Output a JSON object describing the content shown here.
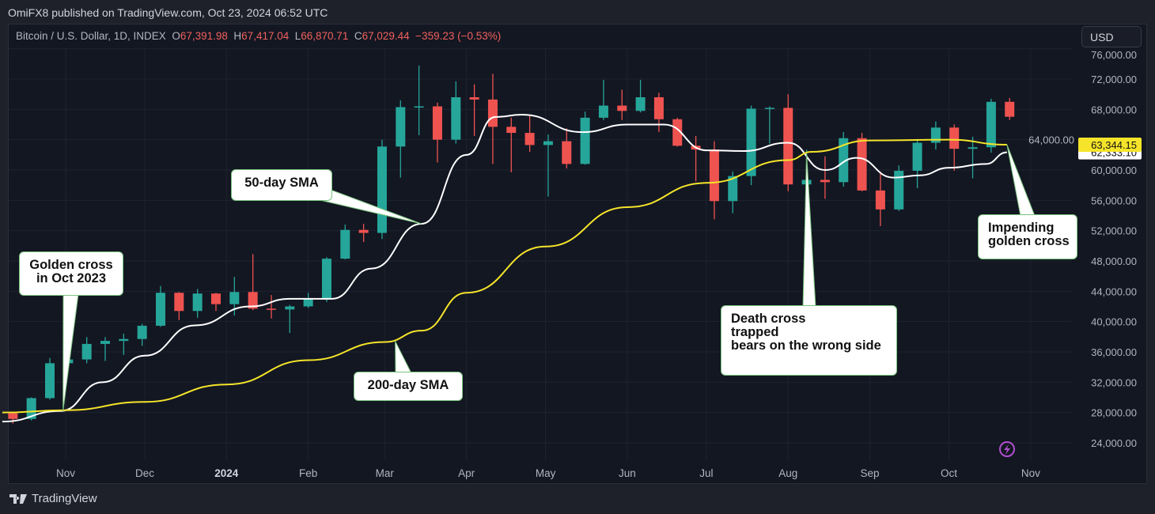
{
  "header": {
    "publish_line": "OmiFX8 published on TradingView.com, Oct 23, 2024 06:52 UTC",
    "symbol": "Bitcoin / U.S. Dollar, 1D, INDEX",
    "open_label": "O",
    "open": "67,391.98",
    "high_label": "H",
    "high": "67,417.04",
    "low_label": "L",
    "low": "66,870.71",
    "close_label": "C",
    "close": "67,029.44",
    "change": "−359.23 (−0.53%)",
    "currency_button": "USD"
  },
  "footer": {
    "brand": "TradingView"
  },
  "colors": {
    "up": "#26a69a",
    "down": "#ef5350",
    "sma50": "#ffffff",
    "sma200": "#f5e42a",
    "background": "#131722",
    "ohlc_values": "#f0605d",
    "callout_border": "#7bc47f",
    "lightning_icon": "#b04fd0"
  },
  "chart_data": {
    "type": "candlestick",
    "note_resolution": "weekly approximation of daily candles",
    "ylim": [
      22000,
      76000
    ],
    "y_ticks": [
      "76,000.00",
      "72,000.00",
      "68,000.00",
      "64,000.00",
      "60,000.00",
      "56,000.00",
      "52,000.00",
      "48,000.00",
      "44,000.00",
      "40,000.00",
      "36,000.00",
      "32,000.00",
      "28,000.00",
      "24,000.00"
    ],
    "x_ticks": [
      {
        "label": "Nov",
        "date": "2023-11-01",
        "bold": false
      },
      {
        "label": "Dec",
        "date": "2023-12-01",
        "bold": false
      },
      {
        "label": "2024",
        "date": "2024-01-01",
        "bold": true
      },
      {
        "label": "Feb",
        "date": "2024-02-01",
        "bold": false
      },
      {
        "label": "Mar",
        "date": "2024-03-01",
        "bold": false
      },
      {
        "label": "Apr",
        "date": "2024-04-01",
        "bold": false
      },
      {
        "label": "May",
        "date": "2024-05-01",
        "bold": false
      },
      {
        "label": "Jun",
        "date": "2024-06-01",
        "bold": false
      },
      {
        "label": "Jul",
        "date": "2024-07-01",
        "bold": false
      },
      {
        "label": "Aug",
        "date": "2024-08-01",
        "bold": false
      },
      {
        "label": "Sep",
        "date": "2024-09-01",
        "bold": false
      },
      {
        "label": "Oct",
        "date": "2024-10-01",
        "bold": false
      },
      {
        "label": "Nov",
        "date": "2024-11-01",
        "bold": false
      }
    ],
    "candles_columns": [
      "week_start",
      "open",
      "high",
      "low",
      "close"
    ],
    "candles": [
      [
        "2023-10-09",
        27900,
        27990,
        26540,
        27150
      ],
      [
        "2023-10-16",
        27150,
        30000,
        26950,
        29900
      ],
      [
        "2023-10-23",
        29900,
        35200,
        29700,
        34500
      ],
      [
        "2023-10-30",
        34500,
        35900,
        33900,
        35000
      ],
      [
        "2023-11-06",
        35000,
        37950,
        34500,
        37050
      ],
      [
        "2023-11-13",
        37050,
        37950,
        34800,
        37450
      ],
      [
        "2023-11-20",
        37450,
        38400,
        35600,
        37700
      ],
      [
        "2023-11-27",
        37700,
        39700,
        36800,
        39450
      ],
      [
        "2023-12-04",
        39450,
        44700,
        39300,
        43800
      ],
      [
        "2023-12-11",
        43800,
        43900,
        40200,
        41400
      ],
      [
        "2023-12-18",
        41400,
        44300,
        40500,
        43700
      ],
      [
        "2023-12-25",
        43700,
        43800,
        41400,
        42300
      ],
      [
        "2024-01-01",
        42300,
        45900,
        40800,
        43900
      ],
      [
        "2024-01-08",
        43900,
        48900,
        41500,
        41700
      ],
      [
        "2024-01-15",
        41700,
        43500,
        40400,
        41600
      ],
      [
        "2024-01-22",
        41600,
        42200,
        38500,
        42000
      ],
      [
        "2024-01-29",
        42000,
        43800,
        41800,
        43000
      ],
      [
        "2024-02-05",
        43000,
        48500,
        42600,
        48300
      ],
      [
        "2024-02-12",
        48300,
        52800,
        48200,
        52100
      ],
      [
        "2024-02-19",
        52100,
        52900,
        50500,
        51700
      ],
      [
        "2024-02-26",
        51700,
        64000,
        50900,
        63100
      ],
      [
        "2024-03-04",
        63100,
        69200,
        59000,
        68300
      ],
      [
        "2024-03-11",
        68300,
        73800,
        64600,
        68400
      ],
      [
        "2024-03-18",
        68400,
        68900,
        61000,
        64000
      ],
      [
        "2024-03-25",
        64000,
        71700,
        63500,
        69600
      ],
      [
        "2024-04-01",
        69600,
        71300,
        64500,
        69300
      ],
      [
        "2024-04-08",
        69300,
        72700,
        60800,
        65700
      ],
      [
        "2024-04-15",
        65700,
        66900,
        59700,
        64900
      ],
      [
        "2024-04-22",
        64900,
        67200,
        62400,
        63300
      ],
      [
        "2024-04-29",
        63300,
        64700,
        56500,
        63800
      ],
      [
        "2024-05-06",
        63800,
        65500,
        60200,
        60800
      ],
      [
        "2024-05-13",
        60800,
        67700,
        60700,
        66900
      ],
      [
        "2024-05-20",
        66900,
        71900,
        66600,
        68500
      ],
      [
        "2024-05-27",
        68500,
        70600,
        66600,
        67800
      ],
      [
        "2024-06-03",
        67800,
        71900,
        67600,
        69600
      ],
      [
        "2024-06-10",
        69600,
        70200,
        65000,
        66700
      ],
      [
        "2024-06-17",
        66700,
        66900,
        63100,
        63200
      ],
      [
        "2024-06-24",
        63200,
        64500,
        58500,
        62700
      ],
      [
        "2024-07-01",
        62700,
        63800,
        53500,
        55900
      ],
      [
        "2024-07-08",
        55900,
        59800,
        54300,
        59200
      ],
      [
        "2024-07-15",
        59200,
        68500,
        58000,
        68100
      ],
      [
        "2024-07-22",
        68100,
        68400,
        63500,
        68200
      ],
      [
        "2024-07-29",
        68200,
        70000,
        57200,
        58100
      ],
      [
        "2024-08-05",
        58100,
        62700,
        49000,
        58700
      ],
      [
        "2024-08-12",
        58700,
        61800,
        56200,
        58400
      ],
      [
        "2024-08-19",
        58400,
        65000,
        57800,
        64200
      ],
      [
        "2024-08-26",
        64200,
        64900,
        57200,
        57300
      ],
      [
        "2024-09-02",
        57300,
        59800,
        52600,
        54800
      ],
      [
        "2024-09-09",
        54800,
        60600,
        54600,
        59900
      ],
      [
        "2024-09-16",
        59900,
        64100,
        57600,
        63600
      ],
      [
        "2024-09-23",
        63600,
        66400,
        62700,
        65600
      ],
      [
        "2024-09-30",
        65600,
        66000,
        59900,
        62800
      ],
      [
        "2024-10-07",
        62800,
        64400,
        58900,
        63000
      ],
      [
        "2024-10-14",
        63000,
        69400,
        62300,
        69000
      ],
      [
        "2024-10-21",
        69000,
        69500,
        66600,
        67029
      ]
    ],
    "series": [
      {
        "name": "50-day SMA",
        "color": "#ffffff",
        "last_value": "62,333.10",
        "points": [
          [
            "2023-10-08",
            26800
          ],
          [
            "2023-10-30",
            28200
          ],
          [
            "2023-11-15",
            32000
          ],
          [
            "2023-12-01",
            35500
          ],
          [
            "2023-12-20",
            39500
          ],
          [
            "2024-01-10",
            42000
          ],
          [
            "2024-01-25",
            43000
          ],
          [
            "2024-02-10",
            43000
          ],
          [
            "2024-02-25",
            47000
          ],
          [
            "2024-03-15",
            52900
          ],
          [
            "2024-04-01",
            62000
          ],
          [
            "2024-04-12",
            67000
          ],
          [
            "2024-04-22",
            67300
          ],
          [
            "2024-05-15",
            65000
          ],
          [
            "2024-06-01",
            66000
          ],
          [
            "2024-06-15",
            66000
          ],
          [
            "2024-07-01",
            62600
          ],
          [
            "2024-07-15",
            62500
          ],
          [
            "2024-08-01",
            63600
          ],
          [
            "2024-08-15",
            60000
          ],
          [
            "2024-08-27",
            61600
          ],
          [
            "2024-09-10",
            59000
          ],
          [
            "2024-09-20",
            59300
          ],
          [
            "2024-10-01",
            60300
          ],
          [
            "2024-10-15",
            60800
          ],
          [
            "2024-10-23",
            62333
          ]
        ]
      },
      {
        "name": "200-day SMA",
        "color": "#f5e42a",
        "last_value": "63,344.15",
        "points": [
          [
            "2023-10-08",
            28000
          ],
          [
            "2023-11-01",
            28300
          ],
          [
            "2023-12-01",
            29400
          ],
          [
            "2024-01-01",
            31700
          ],
          [
            "2024-02-01",
            34900
          ],
          [
            "2024-03-01",
            37300
          ],
          [
            "2024-03-15",
            38800
          ],
          [
            "2024-04-01",
            43800
          ],
          [
            "2024-05-01",
            49900
          ],
          [
            "2024-06-01",
            55100
          ],
          [
            "2024-07-01",
            58300
          ],
          [
            "2024-08-01",
            61300
          ],
          [
            "2024-08-10",
            62400
          ],
          [
            "2024-09-01",
            63900
          ],
          [
            "2024-10-01",
            64000
          ],
          [
            "2024-10-23",
            63344
          ]
        ]
      }
    ],
    "annotations": [
      {
        "text": "Golden cross\nin Oct 2023",
        "date": "2023-10-31",
        "value": 28200
      },
      {
        "text": "50-day SMA",
        "date": "2024-03-15",
        "value": 52900
      },
      {
        "text": "200-day SMA",
        "date": "2024-03-05",
        "value": 37400
      },
      {
        "text": "Death cross\ntrapped\nbears on the wrong side",
        "date": "2024-08-08",
        "value": 62200
      },
      {
        "text": "Impending\ngolden cross",
        "date": "2024-10-23",
        "value": 63344
      }
    ]
  }
}
